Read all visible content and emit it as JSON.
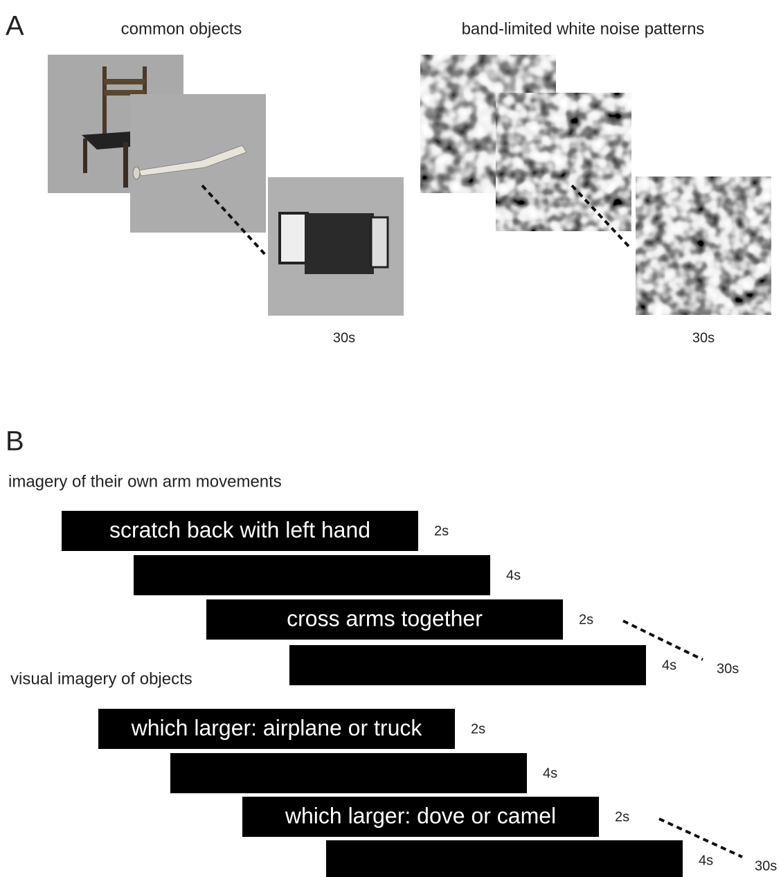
{
  "panel_a": {
    "label": "A",
    "groups": [
      {
        "title": "common objects",
        "duration": "30s"
      },
      {
        "title": "band-limited white noise patterns",
        "duration": "30s"
      }
    ]
  },
  "panel_b": {
    "label": "B",
    "groups": [
      {
        "title": "imagery of their own arm movements",
        "trials": [
          {
            "text": "scratch back with left hand",
            "duration": "2s"
          },
          {
            "duration": "4s"
          },
          {
            "text": "cross arms together",
            "duration": "2s"
          },
          {
            "duration": "4s"
          }
        ],
        "total": "30s"
      },
      {
        "title": "visual imagery of objects",
        "trials": [
          {
            "text": "which larger: airplane or truck",
            "duration": "2s"
          },
          {
            "duration": "4s"
          },
          {
            "text": "which larger: dove or camel",
            "duration": "2s"
          },
          {
            "duration": "4s"
          }
        ],
        "total": "30s"
      }
    ]
  }
}
